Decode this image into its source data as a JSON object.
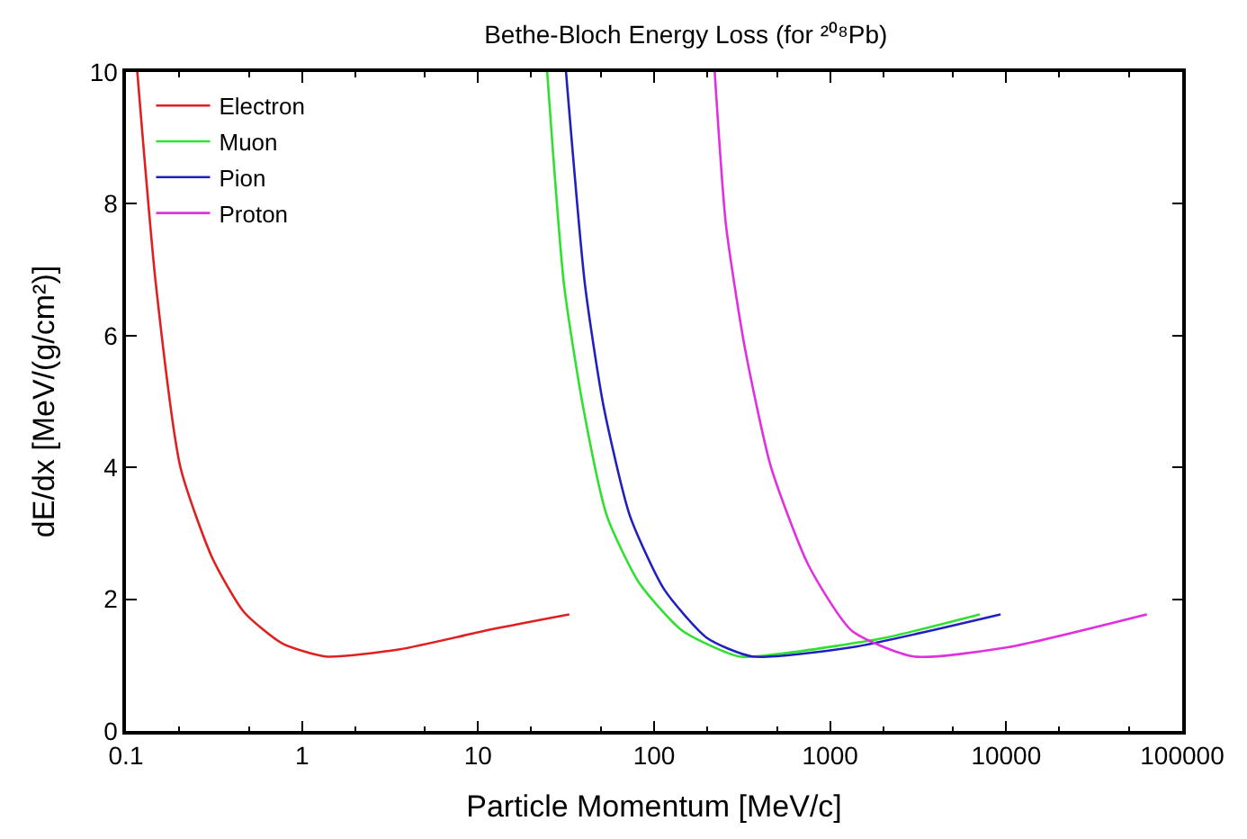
{
  "chart_data": {
    "type": "line",
    "title": "Bethe-Bloch Energy Loss (for ²⁰⁸Pb)",
    "xlabel": "Particle Momentum [MeV/c]",
    "ylabel": "dE/dx [MeV/(g/cm²)]",
    "log": "x",
    "xlim": [
      0.1,
      100000
    ],
    "xticks": [
      0.1,
      1,
      10,
      100,
      1000,
      10000,
      100000
    ],
    "ylim": [
      0,
      10
    ],
    "yticks": [
      0,
      2,
      4,
      6,
      8,
      10
    ],
    "legend": "top left",
    "marker": "none",
    "line_style": "solid",
    "series": [
      {
        "name": "Electron",
        "color": "#e02020",
        "x": [
          0.116,
          0.148,
          0.204,
          0.31,
          0.47,
          0.77,
          1.36,
          3.6,
          12.3,
          33
        ],
        "values": [
          10,
          6.77,
          4.0,
          2.62,
          1.8,
          1.33,
          1.13,
          1.24,
          1.55,
          1.77
        ]
      },
      {
        "name": "Muon",
        "color": "#30e030",
        "x": [
          24.7,
          30.8,
          39.5,
          54,
          82.6,
          145,
          304,
          590,
          2020,
          7080
        ],
        "values": [
          10,
          6.77,
          4.92,
          3.26,
          2.24,
          1.52,
          1.13,
          1.19,
          1.41,
          1.77
        ]
      },
      {
        "name": "Pion",
        "color": "#2020c0",
        "x": [
          31.6,
          40.5,
          51.7,
          73,
          114,
          200,
          361,
          1330,
          9290
        ],
        "values": [
          10,
          6.77,
          4.92,
          3.26,
          2.15,
          1.41,
          1.13,
          1.27,
          1.77
        ]
      },
      {
        "name": "Proton",
        "color": "#e030e0",
        "x": [
          221,
          256,
          327,
          462,
          755,
          1330,
          2990,
          10200,
          63000
        ],
        "values": [
          10,
          7.68,
          5.83,
          4.0,
          2.51,
          1.52,
          1.13,
          1.27,
          1.77
        ]
      }
    ]
  }
}
